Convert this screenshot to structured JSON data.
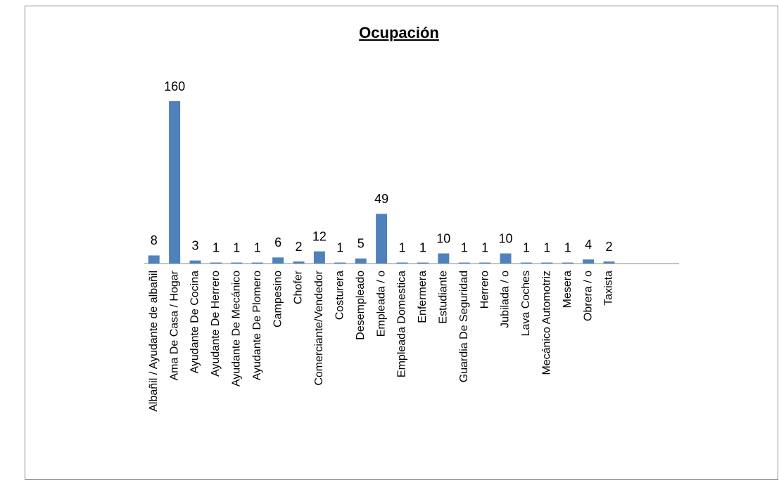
{
  "chart_data": {
    "type": "bar",
    "title": "Ocupación",
    "categories": [
      "Albañil / Ayudante de albañil",
      "Ama De Casa / Hogar",
      "Ayudante De Cocina",
      "Ayudante De Herrero",
      "Ayudante De Mecánico",
      "Ayudante De Plomero",
      "Campesino",
      "Chofer",
      "Comerciante/Vendedor",
      "Costurera",
      "Desempleado",
      "Empleada / o",
      "Empleada Domestica",
      "Enfermera",
      "Estudiante",
      "Guardia De Seguridad",
      "Herrero",
      "Jubilada / o",
      "Lava Coches",
      "Mecánico Automotriz",
      "Mesera",
      "Obrera / o",
      "Taxista"
    ],
    "values": [
      8,
      160,
      3,
      1,
      1,
      1,
      6,
      2,
      12,
      1,
      5,
      49,
      1,
      1,
      10,
      1,
      1,
      10,
      1,
      1,
      1,
      4,
      2
    ],
    "color": "#4f81bd",
    "ylim": [
      0,
      160
    ],
    "grid": false
  }
}
